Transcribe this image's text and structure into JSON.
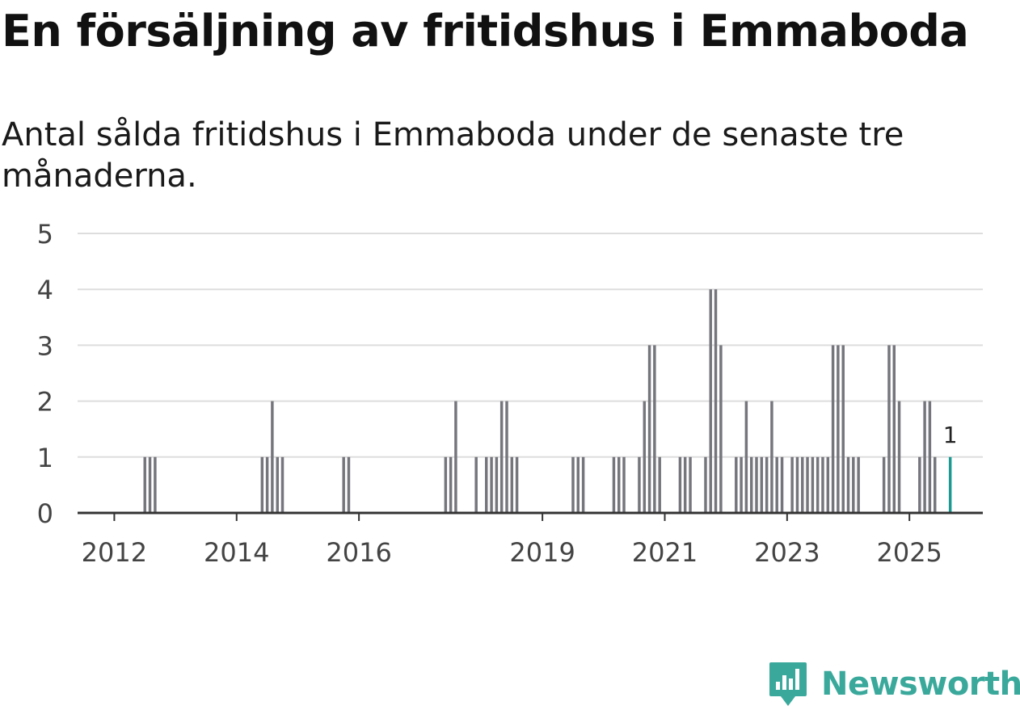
{
  "title": "En försäljning av fritidshus i Emmaboda",
  "subtitle": "Antal sålda fritidshus i Emmaboda under de senaste tre månaderna.",
  "brand": {
    "name": "Newsworthy",
    "color": "#3aa99c"
  },
  "colors": {
    "bar": "#75757d",
    "highlight": "#1a9a92",
    "grid": "#dddddd",
    "axis": "#333333"
  },
  "chart_data": {
    "type": "bar",
    "title": "En försäljning av fritidshus i Emmaboda",
    "subtitle": "Antal sålda fritidshus i Emmaboda under de senaste tre månaderna.",
    "xlabel": "",
    "ylabel": "",
    "ylim": [
      0,
      5
    ],
    "yticks": [
      0,
      1,
      2,
      3,
      4,
      5
    ],
    "xlim": [
      2011.4,
      2026.2
    ],
    "xticks": [
      2012,
      2014,
      2016,
      2019,
      2021,
      2023,
      2025
    ],
    "bar_width_months": 0.55,
    "series": [
      {
        "name": "Antal sålda fritidshus",
        "points": [
          {
            "x": 2012.5,
            "y": 1
          },
          {
            "x": 2012.583,
            "y": 1
          },
          {
            "x": 2012.667,
            "y": 1
          },
          {
            "x": 2014.417,
            "y": 1
          },
          {
            "x": 2014.5,
            "y": 1
          },
          {
            "x": 2014.583,
            "y": 2
          },
          {
            "x": 2014.667,
            "y": 1
          },
          {
            "x": 2014.75,
            "y": 1
          },
          {
            "x": 2015.75,
            "y": 1
          },
          {
            "x": 2015.833,
            "y": 1
          },
          {
            "x": 2017.417,
            "y": 1
          },
          {
            "x": 2017.5,
            "y": 1
          },
          {
            "x": 2017.583,
            "y": 2
          },
          {
            "x": 2017.917,
            "y": 1
          },
          {
            "x": 2018.083,
            "y": 1
          },
          {
            "x": 2018.167,
            "y": 1
          },
          {
            "x": 2018.25,
            "y": 1
          },
          {
            "x": 2018.333,
            "y": 2
          },
          {
            "x": 2018.417,
            "y": 2
          },
          {
            "x": 2018.5,
            "y": 1
          },
          {
            "x": 2018.583,
            "y": 1
          },
          {
            "x": 2019.5,
            "y": 1
          },
          {
            "x": 2019.583,
            "y": 1
          },
          {
            "x": 2019.667,
            "y": 1
          },
          {
            "x": 2020.167,
            "y": 1
          },
          {
            "x": 2020.25,
            "y": 1
          },
          {
            "x": 2020.333,
            "y": 1
          },
          {
            "x": 2020.583,
            "y": 1
          },
          {
            "x": 2020.667,
            "y": 2
          },
          {
            "x": 2020.75,
            "y": 3
          },
          {
            "x": 2020.833,
            "y": 3
          },
          {
            "x": 2020.917,
            "y": 1
          },
          {
            "x": 2021.25,
            "y": 1
          },
          {
            "x": 2021.333,
            "y": 1
          },
          {
            "x": 2021.417,
            "y": 1
          },
          {
            "x": 2021.667,
            "y": 1
          },
          {
            "x": 2021.75,
            "y": 4
          },
          {
            "x": 2021.833,
            "y": 4
          },
          {
            "x": 2021.917,
            "y": 3
          },
          {
            "x": 2022.167,
            "y": 1
          },
          {
            "x": 2022.25,
            "y": 1
          },
          {
            "x": 2022.333,
            "y": 2
          },
          {
            "x": 2022.417,
            "y": 1
          },
          {
            "x": 2022.5,
            "y": 1
          },
          {
            "x": 2022.583,
            "y": 1
          },
          {
            "x": 2022.667,
            "y": 1
          },
          {
            "x": 2022.75,
            "y": 2
          },
          {
            "x": 2022.833,
            "y": 1
          },
          {
            "x": 2022.917,
            "y": 1
          },
          {
            "x": 2023.083,
            "y": 1
          },
          {
            "x": 2023.167,
            "y": 1
          },
          {
            "x": 2023.25,
            "y": 1
          },
          {
            "x": 2023.333,
            "y": 1
          },
          {
            "x": 2023.417,
            "y": 1
          },
          {
            "x": 2023.5,
            "y": 1
          },
          {
            "x": 2023.583,
            "y": 1
          },
          {
            "x": 2023.667,
            "y": 1
          },
          {
            "x": 2023.75,
            "y": 3
          },
          {
            "x": 2023.833,
            "y": 3
          },
          {
            "x": 2023.917,
            "y": 3
          },
          {
            "x": 2024.0,
            "y": 1
          },
          {
            "x": 2024.083,
            "y": 1
          },
          {
            "x": 2024.167,
            "y": 1
          },
          {
            "x": 2024.583,
            "y": 1
          },
          {
            "x": 2024.667,
            "y": 3
          },
          {
            "x": 2024.75,
            "y": 3
          },
          {
            "x": 2024.833,
            "y": 2
          },
          {
            "x": 2025.167,
            "y": 1
          },
          {
            "x": 2025.25,
            "y": 2
          },
          {
            "x": 2025.333,
            "y": 2
          },
          {
            "x": 2025.417,
            "y": 1
          },
          {
            "x": 2025.667,
            "y": 1,
            "highlight": true,
            "label": "1"
          }
        ]
      }
    ]
  }
}
